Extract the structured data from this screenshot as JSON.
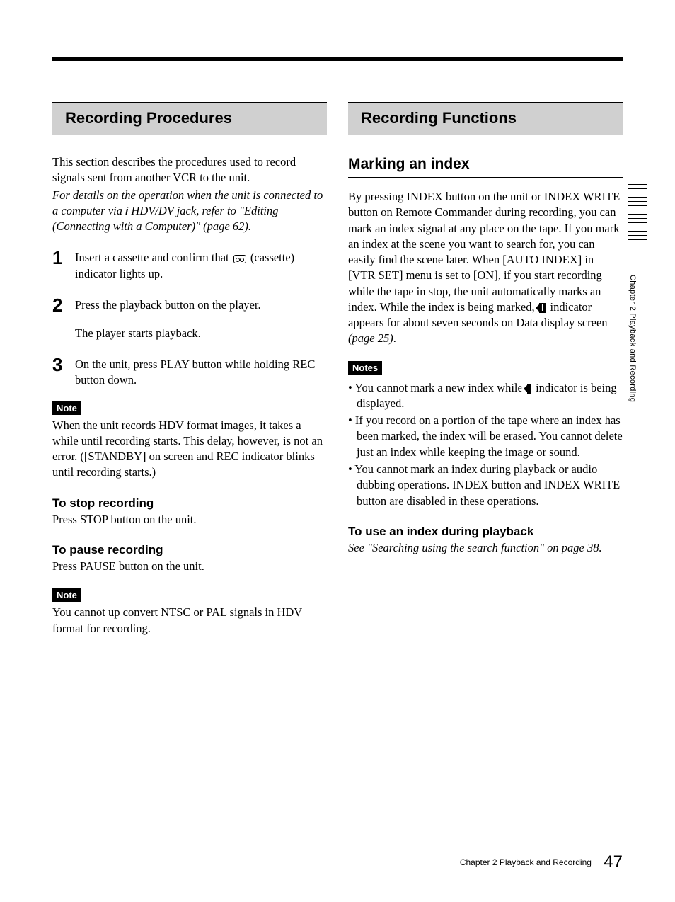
{
  "left": {
    "heading": "Recording Procedures",
    "intro1": "This section describes the procedures used to record signals sent from another VCR to the unit.",
    "intro2_a": "For details on the operation when the unit is connected to a computer via ",
    "intro2_b": " HDV/DV jack, refer to \"Editing (Connecting with a Computer)\" (page 62).",
    "step1_a": "Insert a cassette and confirm that ",
    "step1_b": " (cassette) indicator lights up.",
    "step2": "Press the playback button on the player.",
    "step2_sub": "The player starts playback.",
    "step3": "On the unit, press PLAY button while holding REC button down.",
    "note_label": "Note",
    "note1": "When the unit records HDV format images, it takes a while until recording starts. This delay, however, is not an error. ([STANDBY] on screen and REC indicator blinks until recording starts.)",
    "stop_h": "To stop recording",
    "stop_t": "Press STOP button on the unit.",
    "pause_h": "To pause recording",
    "pause_t": "Press PAUSE button on the unit.",
    "note2": "You cannot up convert NTSC or PAL signals in HDV format for recording."
  },
  "right": {
    "heading": "Recording Functions",
    "sub1": "Marking an index",
    "para_a": "By pressing INDEX button on the unit or INDEX WRITE button on Remote Commander during recording, you can mark an index signal at any place on the tape. If you mark an index at the scene you want to search for, you can easily find the scene later. When [AUTO INDEX] in [VTR SET] menu is set to [ON], if you start recording while the tape in stop, the unit automatically marks an index. While the index is being marked, ",
    "para_b": " indicator appears for about seven seconds on Data display screen ",
    "para_c": "(page 25)",
    "para_d": ".",
    "notes_label": "Notes",
    "b1_a": "You cannot mark a new index while ",
    "b1_b": " indicator is being displayed.",
    "b2": "If you record on a portion of the tape where an index has been marked, the index will be erased. You cannot delete just an index while keeping the image or sound.",
    "b3": "You cannot mark an index during playback or audio dubbing operations. INDEX button and INDEX WRITE button are disabled in these operations.",
    "use_h": "To use an index during playback",
    "use_t": "See \"Searching using the search function\" on page 38."
  },
  "side": "Chapter 2   Playback and Recording",
  "footer_chapter": "Chapter 2   Playback and Recording",
  "footer_page": "47",
  "icons": {
    "ilink": "i",
    "marker": "I"
  }
}
